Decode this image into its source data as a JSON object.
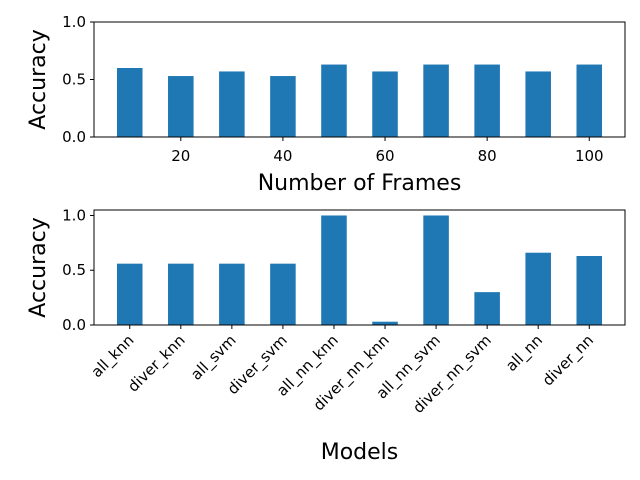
{
  "colors": {
    "bar": "#1f77b4",
    "axis": "#000000",
    "background": "#ffffff"
  },
  "chart_data": [
    {
      "type": "bar",
      "x": [
        10,
        20,
        30,
        40,
        50,
        60,
        70,
        80,
        90,
        100
      ],
      "values": [
        0.6,
        0.53,
        0.57,
        0.53,
        0.63,
        0.57,
        0.63,
        0.63,
        0.57,
        0.63
      ],
      "xticks": [
        "20",
        "40",
        "60",
        "80",
        "100"
      ],
      "xtick_values": [
        20,
        40,
        60,
        80,
        100
      ],
      "xlim": [
        3,
        107
      ],
      "ylim": [
        0,
        1.0
      ],
      "yticks": [
        "0.0",
        "0.5",
        "1.0"
      ],
      "ytick_values": [
        0,
        0.5,
        1.0
      ],
      "xlabel": "Number of Frames",
      "ylabel": "Accuracy",
      "grid": false
    },
    {
      "type": "bar",
      "categories": [
        "all_knn",
        "diver_knn",
        "all_svm",
        "diver_svm",
        "all_nn_knn",
        "diver_nn_knn",
        "all_nn_svm",
        "diver_nn_svm",
        "all_nn",
        "diver_nn"
      ],
      "values": [
        0.56,
        0.56,
        0.56,
        0.56,
        1.0,
        0.03,
        1.0,
        0.3,
        0.66,
        0.63
      ],
      "ylim": [
        0,
        1.05
      ],
      "yticks": [
        "0.0",
        "0.5",
        "1.0"
      ],
      "ytick_values": [
        0,
        0.5,
        1.0
      ],
      "xlabel": "Models",
      "ylabel": "Accuracy",
      "xtick_rotation": 45,
      "grid": false
    }
  ]
}
